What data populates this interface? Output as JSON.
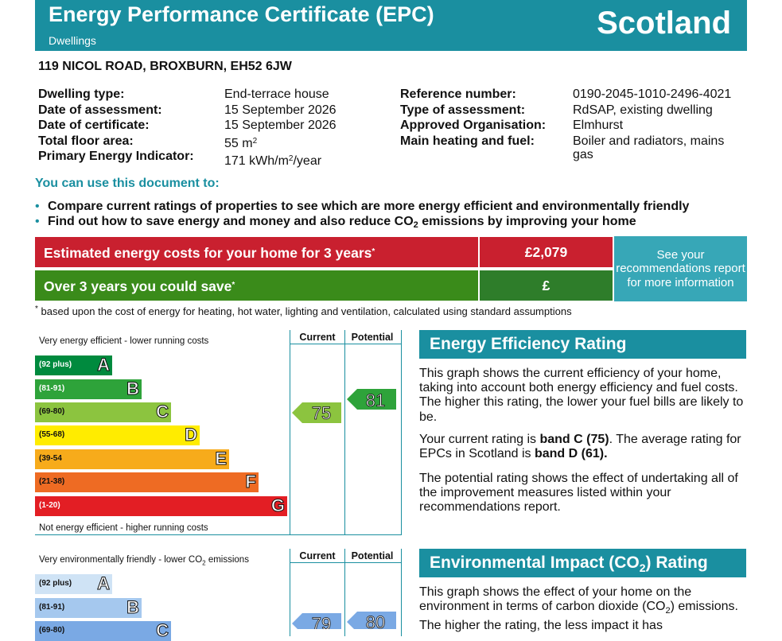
{
  "header": {
    "title": "Energy Performance Certificate (EPC)",
    "subtitle": "Dwellings",
    "country": "Scotland"
  },
  "address": "119 NICOL ROAD, BROXBURN, EH52 6JW",
  "details_left": [
    {
      "label": "Dwelling type:",
      "value": "End-terrace house"
    },
    {
      "label": "Date of assessment:",
      "value": "15 September 2026"
    },
    {
      "label": "Date of certificate:",
      "value": "15 September 2026"
    },
    {
      "label": "Total floor area:",
      "value": "55 m",
      "unit_sup": "2"
    },
    {
      "label": "Primary Energy Indicator:",
      "value": "171 kWh/m",
      "unit_sup": "2",
      "value_suffix": "/year"
    }
  ],
  "details_right": [
    {
      "label": "Reference number:",
      "value": "0190-2045-1010-2496-4021"
    },
    {
      "label": "Type of assessment:",
      "value": "RdSAP, existing dwelling"
    },
    {
      "label": "Approved Organisation:",
      "value": "Elmhurst"
    },
    {
      "label": "Main heating and fuel:",
      "value": "Boiler and radiators, mains",
      "value2": "gas"
    }
  ],
  "use_document": {
    "heading": "You can use this document to:",
    "bullet1": "Compare current ratings of properties to see which are more energy efficient and environmentally friendly",
    "bullet2_before": "Find out how to save energy and money and also reduce CO",
    "bullet2_sub": "2",
    "bullet2_after": " emissions by improving your home"
  },
  "costs": {
    "row1_label": "Estimated energy costs for your home for 3 years",
    "row1_marker": "*",
    "row1_value": "£2,079",
    "row2_label": "Over 3 years you could save",
    "row2_marker": "*",
    "row2_value": "£",
    "recommend_text": "See your recommendations report for more information",
    "footnote_marker": "*",
    "footnote": "based upon the cost of energy for heating, hot water, lighting and ventilation, calculated using standard assumptions"
  },
  "energy_graph": {
    "col_current": "Current",
    "col_potential": "Potential",
    "top_note": "Very energy efficient - lower running costs",
    "bottom_note": "Not energy efficient - higher running costs",
    "bands": [
      {
        "range": "(92 plus)",
        "letter": "A",
        "color": "#008a3e"
      },
      {
        "range": "(81-91)",
        "letter": "B",
        "color": "#2ea33a"
      },
      {
        "range": "(69-80)",
        "letter": "C",
        "color": "#8cc43f"
      },
      {
        "range": "(55-68)",
        "letter": "D",
        "color": "#ffec00"
      },
      {
        "range": "(39-54",
        "letter": "E",
        "color": "#f7ab1b"
      },
      {
        "range": "(21-38)",
        "letter": "F",
        "color": "#ee6b23"
      },
      {
        "range": "(1-20)",
        "letter": "G",
        "color": "#e31e24"
      }
    ],
    "current": {
      "value": "75",
      "color": "#8cc43f"
    },
    "potential": {
      "value": "81",
      "color": "#2ea33a"
    }
  },
  "energy_section": {
    "heading": "Energy Efficiency Rating",
    "para1": "This graph shows the current efficiency of your home, taking into account both energy efficiency and fuel costs. The higher this rating, the lower your fuel bills are likely to be.",
    "para2_a": "Your current rating is ",
    "para2_b": "band C (75)",
    "para2_c": ". The average rating for EPCs in Scotland is ",
    "para2_d": "band D (61).",
    "para3": "The potential rating shows the effect of undertaking all of the improvement measures listed within your recommendations report."
  },
  "env_graph": {
    "col_current": "Current",
    "col_potential": "Potential",
    "top_note_before": "Very environmentally friendly - lower CO",
    "top_note_sub": "2",
    "top_note_after": " emissions",
    "bands": [
      {
        "range": "(92 plus)",
        "letter": "A",
        "color": "#cfe3f5"
      },
      {
        "range": "(81-91)",
        "letter": "B",
        "color": "#a5c8ee"
      },
      {
        "range": "(69-80)",
        "letter": "C",
        "color": "#7aa9e4"
      }
    ],
    "current": {
      "value": "79",
      "color": "#7aa9e4"
    },
    "potential": {
      "value": "80",
      "color": "#7aa9e4"
    }
  },
  "env_section": {
    "heading_before": "Environmental Impact (CO",
    "heading_sub": "2",
    "heading_after": ") Rating",
    "para1_a": "This graph shows the effect of your home on the environment in terms of carbon dioxide (CO",
    "para1_sub": "2",
    "para1_b": ") emissions. The higher the rating, the less impact it has"
  }
}
